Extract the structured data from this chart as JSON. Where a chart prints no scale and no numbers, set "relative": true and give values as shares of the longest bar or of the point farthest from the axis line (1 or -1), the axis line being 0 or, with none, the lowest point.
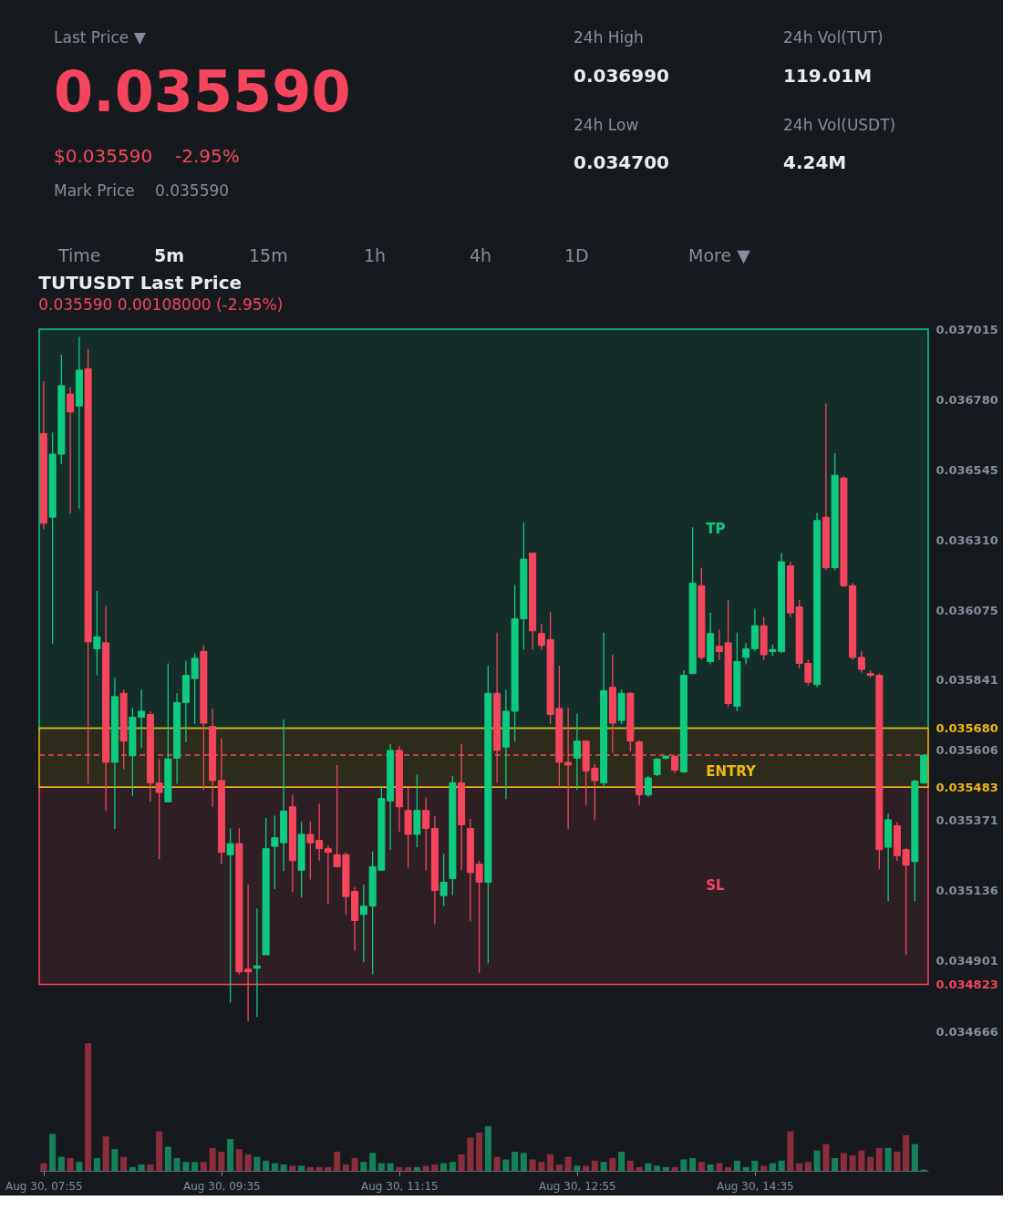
{
  "chart_data": [
    {
      "type": "other",
      "annotations": [
        "Last Price ▼",
        "0.035590",
        "$0.035590",
        "-2.95%",
        "Mark Price",
        "0.035590",
        "24h High",
        "0.036990",
        "24h Low",
        "0.034700",
        "24h Vol(TUT)",
        "119.01M",
        "24h Vol(USDT)",
        "4.24M",
        "Time",
        "5m",
        "15m",
        "1h",
        "4h",
        "1D",
        "More ▼"
      ]
    },
    {
      "type": "candlestick",
      "title": "TUTUSDT Last Price",
      "subtitle": "0.035590 0.00108000 (-2.95%)",
      "categories": [
        null,
        null,
        null,
        null,
        null,
        null,
        null,
        null,
        null,
        null,
        null,
        null,
        null,
        null,
        null,
        null,
        null,
        null,
        null,
        null,
        null,
        null,
        null,
        null,
        null,
        null,
        null,
        null,
        null,
        null,
        null,
        null,
        null,
        null,
        null,
        null,
        null,
        null,
        null,
        null,
        null,
        null,
        null,
        null,
        null,
        null,
        null,
        null,
        null,
        null,
        null,
        null,
        null,
        null,
        null,
        null,
        null,
        null,
        null,
        null,
        null,
        null,
        null,
        null,
        null,
        null,
        null,
        null,
        null,
        null,
        null,
        null,
        null,
        null,
        null,
        null,
        null,
        null,
        null,
        null,
        null,
        null,
        null,
        null,
        null,
        null,
        null,
        null,
        null,
        null,
        null,
        null,
        null,
        null,
        null,
        null,
        null,
        null,
        null,
        null
      ],
      "ohlc": [
        [
          0.036666,
          0.036841,
          0.036346,
          0.036366
        ],
        [
          0.036386,
          0.036669,
          0.035963,
          0.036597
        ],
        [
          0.036597,
          0.036929,
          0.036563,
          0.036826
        ],
        [
          0.036798,
          0.036821,
          0.036398,
          0.036738
        ],
        [
          0.036758,
          0.03699,
          0.036415,
          0.036878
        ],
        [
          0.036883,
          0.036949,
          0.035494,
          0.035969
        ],
        [
          0.035946,
          0.03614,
          0.035857,
          0.035986
        ],
        [
          0.035966,
          0.036089,
          0.035403,
          0.035566
        ],
        [
          0.035566,
          0.035849,
          0.035343,
          0.035786
        ],
        [
          0.035797,
          0.035809,
          0.035543,
          0.035637
        ],
        [
          0.035588,
          0.035749,
          0.035454,
          0.035717
        ],
        [
          0.035717,
          0.035809,
          0.035614,
          0.035737
        ],
        [
          0.035726,
          0.035737,
          0.035434,
          0.035497
        ],
        [
          0.035497,
          0.035577,
          0.035242,
          0.035465
        ],
        [
          0.035434,
          0.035897,
          0.035434,
          0.035577
        ],
        [
          0.03558,
          0.035797,
          0.035494,
          0.035766
        ],
        [
          0.035766,
          0.035906,
          0.035634,
          0.035857
        ],
        [
          0.035846,
          0.035931,
          0.035694,
          0.035914
        ],
        [
          0.035937,
          0.035957,
          0.035474,
          0.035697
        ],
        [
          0.035686,
          0.035746,
          0.035417,
          0.035505
        ],
        [
          0.035505,
          0.035646,
          0.035225,
          0.035265
        ],
        [
          0.035257,
          0.035345,
          0.034762,
          0.035294
        ],
        [
          0.035294,
          0.035345,
          0.034857,
          0.034865
        ],
        [
          0.034874,
          0.035157,
          0.0347,
          0.034865
        ],
        [
          0.034877,
          0.035077,
          0.034714,
          0.034885
        ],
        [
          0.034922,
          0.03538,
          0.034922,
          0.035277
        ],
        [
          0.035285,
          0.035388,
          0.035142,
          0.035314
        ],
        [
          0.035297,
          0.035709,
          0.035202,
          0.035403
        ],
        [
          0.035417,
          0.035457,
          0.035131,
          0.035237
        ],
        [
          0.035205,
          0.035368,
          0.035114,
          0.035325
        ],
        [
          0.035325,
          0.035368,
          0.035174,
          0.035297
        ],
        [
          0.035305,
          0.035428,
          0.035237,
          0.035277
        ],
        [
          0.035277,
          0.035288,
          0.035091,
          0.035265
        ],
        [
          0.035257,
          0.035557,
          0.035214,
          0.035217
        ],
        [
          0.035257,
          0.035265,
          0.035057,
          0.035117
        ],
        [
          0.035134,
          0.035148,
          0.034937,
          0.035037
        ],
        [
          0.035057,
          0.035157,
          0.034897,
          0.035085
        ],
        [
          0.035085,
          0.035268,
          0.034857,
          0.035217
        ],
        [
          0.035205,
          0.035488,
          0.035205,
          0.035445
        ],
        [
          0.035437,
          0.035628,
          0.035274,
          0.035606
        ],
        [
          0.035606,
          0.03562,
          0.035334,
          0.035417
        ],
        [
          0.035405,
          0.03548,
          0.035214,
          0.035325
        ],
        [
          0.035325,
          0.035525,
          0.035282,
          0.035405
        ],
        [
          0.035405,
          0.035448,
          0.035205,
          0.035345
        ],
        [
          0.035345,
          0.035385,
          0.035025,
          0.035137
        ],
        [
          0.03512,
          0.03526,
          0.035085,
          0.035165
        ],
        [
          0.035177,
          0.03552,
          0.035122,
          0.035497
        ],
        [
          0.035497,
          0.035628,
          0.035205,
          0.035357
        ],
        [
          0.035345,
          0.035377,
          0.035034,
          0.035197
        ],
        [
          0.035225,
          0.035237,
          0.034862,
          0.035165
        ],
        [
          0.035165,
          0.035889,
          0.034894,
          0.035797
        ],
        [
          0.035797,
          0.036,
          0.035497,
          0.035606
        ],
        [
          0.035617,
          0.035809,
          0.035443,
          0.035737
        ],
        [
          0.035737,
          0.03616,
          0.035637,
          0.036046
        ],
        [
          0.036046,
          0.036369,
          0.035943,
          0.036246
        ],
        [
          0.036266,
          0.036266,
          0.035943,
          0.036006
        ],
        [
          0.035997,
          0.036029,
          0.035943,
          0.035957
        ],
        [
          0.035977,
          0.036069,
          0.035694,
          0.035726
        ],
        [
          0.035746,
          0.035889,
          0.035483,
          0.035566
        ],
        [
          0.035566,
          0.035749,
          0.035343,
          0.035557
        ],
        [
          0.03558,
          0.035729,
          0.035474,
          0.035637
        ],
        [
          0.035637,
          0.03564,
          0.035423,
          0.035537
        ],
        [
          0.035546,
          0.03556,
          0.035374,
          0.035505
        ],
        [
          0.035497,
          0.036,
          0.035483,
          0.035806
        ],
        [
          0.035817,
          0.035926,
          0.035597,
          0.035697
        ],
        [
          0.035706,
          0.035809,
          0.035694,
          0.035797
        ],
        [
          0.035797,
          0.0358,
          0.035603,
          0.035637
        ],
        [
          0.035634,
          0.03564,
          0.035423,
          0.035457
        ],
        [
          0.035457,
          0.03552,
          0.03545,
          0.035514
        ],
        [
          0.035525,
          0.03558,
          0.03552,
          0.035577
        ],
        [
          0.03558,
          0.03559,
          0.035575,
          0.035586
        ],
        [
          0.035586,
          0.03559,
          0.03553,
          0.03554
        ],
        [
          0.035534,
          0.035874,
          0.035531,
          0.035857
        ],
        [
          0.035863,
          0.036352,
          0.03586,
          0.036166
        ],
        [
          0.036157,
          0.036217,
          0.035909,
          0.035917
        ],
        [
          0.035903,
          0.036066,
          0.035894,
          0.035997
        ],
        [
          0.035954,
          0.036009,
          0.035909,
          0.035937
        ],
        [
          0.035966,
          0.036109,
          0.035751,
          0.035763
        ],
        [
          0.035754,
          0.036,
          0.035737,
          0.035903
        ],
        [
          0.035917,
          0.035966,
          0.035894,
          0.035946
        ],
        [
          0.035946,
          0.03608,
          0.035937,
          0.036023
        ],
        [
          0.036023,
          0.036052,
          0.035909,
          0.035926
        ],
        [
          0.035937,
          0.03596,
          0.035923,
          0.035943
        ],
        [
          0.035937,
          0.036266,
          0.035931,
          0.036237
        ],
        [
          0.036223,
          0.036237,
          0.036052,
          0.036066
        ],
        [
          0.036086,
          0.036109,
          0.03588,
          0.035897
        ],
        [
          0.035897,
          0.035909,
          0.035823,
          0.035834
        ],
        [
          0.035826,
          0.0364,
          0.035817,
          0.036375
        ],
        [
          0.036386,
          0.036766,
          0.036209,
          0.036217
        ],
        [
          0.036217,
          0.0366,
          0.036209,
          0.036526
        ],
        [
          0.036517,
          0.036523,
          0.036152,
          0.036157
        ],
        [
          0.036157,
          0.036166,
          0.035909,
          0.035917
        ],
        [
          0.035917,
          0.035937,
          0.035866,
          0.035877
        ],
        [
          0.035863,
          0.035874,
          0.035851,
          0.035857
        ],
        [
          0.035857,
          0.035863,
          0.035208,
          0.035274
        ],
        [
          0.035282,
          0.035394,
          0.035102,
          0.035374
        ],
        [
          0.035354,
          0.035365,
          0.035237,
          0.035254
        ],
        [
          0.035274,
          0.03528,
          0.034922,
          0.035222
        ],
        [
          0.035234,
          0.035508,
          0.035102,
          0.035503
        ],
        [
          0.035497,
          0.03559,
          0.035494,
          0.03559
        ]
      ],
      "colors": [
        "#f6465d",
        "#0ecb81",
        "#0ecb81",
        "#f6465d",
        "#0ecb81",
        "#f6465d",
        "#0ecb81",
        "#f6465d",
        "#0ecb81",
        "#f6465d",
        "#0ecb81",
        "#0ecb81",
        "#f6465d",
        "#f6465d",
        "#0ecb81",
        "#0ecb81",
        "#0ecb81",
        "#0ecb81",
        "#f6465d",
        "#f6465d",
        "#f6465d",
        "#0ecb81",
        "#f6465d",
        "#f6465d",
        "#0ecb81",
        "#0ecb81",
        "#0ecb81",
        "#0ecb81",
        "#f6465d",
        "#0ecb81",
        "#f6465d",
        "#f6465d",
        "#f6465d",
        "#f6465d",
        "#f6465d",
        "#f6465d",
        "#0ecb81",
        "#0ecb81",
        "#0ecb81",
        "#0ecb81",
        "#f6465d",
        "#f6465d",
        "#0ecb81",
        "#f6465d",
        "#f6465d",
        "#0ecb81",
        "#0ecb81",
        "#f6465d",
        "#f6465d",
        "#f6465d",
        "#0ecb81",
        "#f6465d",
        "#0ecb81",
        "#0ecb81",
        "#0ecb81",
        "#f6465d",
        "#f6465d",
        "#f6465d",
        "#f6465d",
        "#f6465d",
        "#0ecb81",
        "#f6465d",
        "#f6465d",
        "#0ecb81",
        "#f6465d",
        "#0ecb81",
        "#f6465d",
        "#f6465d",
        "#0ecb81",
        "#0ecb81",
        "#0ecb81",
        "#f6465d",
        "#0ecb81",
        "#0ecb81",
        "#f6465d",
        "#0ecb81",
        "#f6465d",
        "#f6465d",
        "#0ecb81",
        "#0ecb81",
        "#0ecb81",
        "#f6465d",
        "#0ecb81",
        "#0ecb81",
        "#f6465d",
        "#f6465d",
        "#f6465d",
        "#0ecb81",
        "#f6465d",
        "#0ecb81",
        "#f6465d",
        "#f6465d",
        "#f6465d",
        "#f6465d",
        "#f6465d",
        "#0ecb81",
        "#f6465d",
        "#f6465d",
        "#0ecb81",
        "#0ecb81"
      ],
      "ylim": [
        0.034666,
        0.037015
      ],
      "yticks": [
        0.037015,
        {
          "value": 0.03678,
          "label": "0.036780"
        },
        0.036545,
        {
          "value": 0.03631,
          "label": "0.036310"
        },
        0.036075,
        0.035841,
        {
          "value": 0.03568,
          "label": "0.035680"
        },
        0.035606,
        0.035483,
        0.035371,
        0.035136,
        0.034901,
        0.034823,
        0.034666
      ],
      "tick_labels": "y",
      "bands": [
        {
          "axis": "y",
          "from": 0.03568,
          "to": 0.037015,
          "label": "TP",
          "color": "#0ecb81"
        },
        {
          "axis": "y",
          "from": 0.034823,
          "to": 0.035483,
          "label": "SL",
          "color": "#f6465d"
        },
        {
          "axis": "y",
          "from": 0.035483,
          "to": 0.03568,
          "label": "ENTRY",
          "color": "#f0b90b"
        }
      ],
      "ref_lines": [
        {
          "axis": "y",
          "value": 0.03559,
          "color": "#f6465d",
          "line_style": "dashed"
        }
      ]
    },
    {
      "type": "bar",
      "relative": true,
      "categories": [
        "Aug 30, 07:55",
        null,
        null,
        null,
        null,
        null,
        null,
        null,
        null,
        null,
        null,
        null,
        null,
        null,
        null,
        null,
        null,
        null,
        null,
        null,
        "Aug 30, 09:35",
        null,
        null,
        null,
        null,
        null,
        null,
        null,
        null,
        null,
        null,
        null,
        null,
        null,
        null,
        null,
        null,
        null,
        null,
        null,
        "Aug 30, 11:15",
        null,
        null,
        null,
        null,
        null,
        null,
        null,
        null,
        null,
        null,
        null,
        null,
        null,
        null,
        null,
        null,
        null,
        null,
        null,
        "Aug 30, 12:55",
        null,
        null,
        null,
        null,
        null,
        null,
        null,
        null,
        null,
        null,
        null,
        null,
        null,
        null,
        null,
        null,
        null,
        null,
        null,
        "Aug 30, 14:35",
        null,
        null,
        null,
        null,
        null,
        null,
        null,
        null,
        null,
        null,
        null,
        null,
        null,
        null,
        null,
        null,
        null,
        null,
        null
      ],
      "values": [
        0.06,
        0.29,
        0.11,
        0.1,
        0.07,
        1,
        0.1,
        0.27,
        0.17,
        0.11,
        0.03,
        0.05,
        0.05,
        0.31,
        0.19,
        0.1,
        0.07,
        0.07,
        0.07,
        0.18,
        0.15,
        0.25,
        0.17,
        0.13,
        0.11,
        0.08,
        0.06,
        0.05,
        0.04,
        0.04,
        0.03,
        0.03,
        0.03,
        0.15,
        0.05,
        0.1,
        0.07,
        0.14,
        0.06,
        0.06,
        0.03,
        0.03,
        0.03,
        0.04,
        0.05,
        0.06,
        0.07,
        0.13,
        0.26,
        0.3,
        0.35,
        0.11,
        0.09,
        0.15,
        0.14,
        0.09,
        0.07,
        0.13,
        0.05,
        0.11,
        0.04,
        0.04,
        0.08,
        0.07,
        0.1,
        0.15,
        0.08,
        0.03,
        0.06,
        0.04,
        0.03,
        0.03,
        0.09,
        0.1,
        0.07,
        0.05,
        0.06,
        0.03,
        0.08,
        0.03,
        0.08,
        0.04,
        0.06,
        0.08,
        0.31,
        0.06,
        0.07,
        0.16,
        0.21,
        0.1,
        0.14,
        0.12,
        0.16,
        0.11,
        0.18,
        0.18,
        0.15,
        0.28,
        0.21,
        0.01
      ],
      "colors": [
        "#8c2d3c",
        "#16805a",
        "#16805a",
        "#8c2d3c",
        "#16805a",
        "#8c2d3c",
        "#16805a",
        "#8c2d3c",
        "#16805a",
        "#8c2d3c",
        "#16805a",
        "#16805a",
        "#8c2d3c",
        "#8c2d3c",
        "#16805a",
        "#16805a",
        "#16805a",
        "#16805a",
        "#8c2d3c",
        "#8c2d3c",
        "#8c2d3c",
        "#16805a",
        "#8c2d3c",
        "#8c2d3c",
        "#16805a",
        "#16805a",
        "#16805a",
        "#16805a",
        "#8c2d3c",
        "#16805a",
        "#8c2d3c",
        "#8c2d3c",
        "#8c2d3c",
        "#8c2d3c",
        "#8c2d3c",
        "#8c2d3c",
        "#16805a",
        "#16805a",
        "#16805a",
        "#16805a",
        "#8c2d3c",
        "#8c2d3c",
        "#16805a",
        "#8c2d3c",
        "#8c2d3c",
        "#16805a",
        "#16805a",
        "#8c2d3c",
        "#8c2d3c",
        "#8c2d3c",
        "#16805a",
        "#8c2d3c",
        "#16805a",
        "#16805a",
        "#16805a",
        "#8c2d3c",
        "#8c2d3c",
        "#8c2d3c",
        "#8c2d3c",
        "#8c2d3c",
        "#16805a",
        "#8c2d3c",
        "#8c2d3c",
        "#16805a",
        "#8c2d3c",
        "#16805a",
        "#8c2d3c",
        "#8c2d3c",
        "#16805a",
        "#16805a",
        "#16805a",
        "#8c2d3c",
        "#16805a",
        "#16805a",
        "#8c2d3c",
        "#16805a",
        "#8c2d3c",
        "#8c2d3c",
        "#16805a",
        "#16805a",
        "#16805a",
        "#8c2d3c",
        "#16805a",
        "#16805a",
        "#8c2d3c",
        "#8c2d3c",
        "#8c2d3c",
        "#16805a",
        "#8c2d3c",
        "#16805a",
        "#8c2d3c",
        "#8c2d3c",
        "#8c2d3c",
        "#8c2d3c",
        "#8c2d3c",
        "#16805a",
        "#8c2d3c",
        "#8c2d3c",
        "#16805a",
        "#16805a"
      ],
      "tick_labels": "x"
    }
  ]
}
